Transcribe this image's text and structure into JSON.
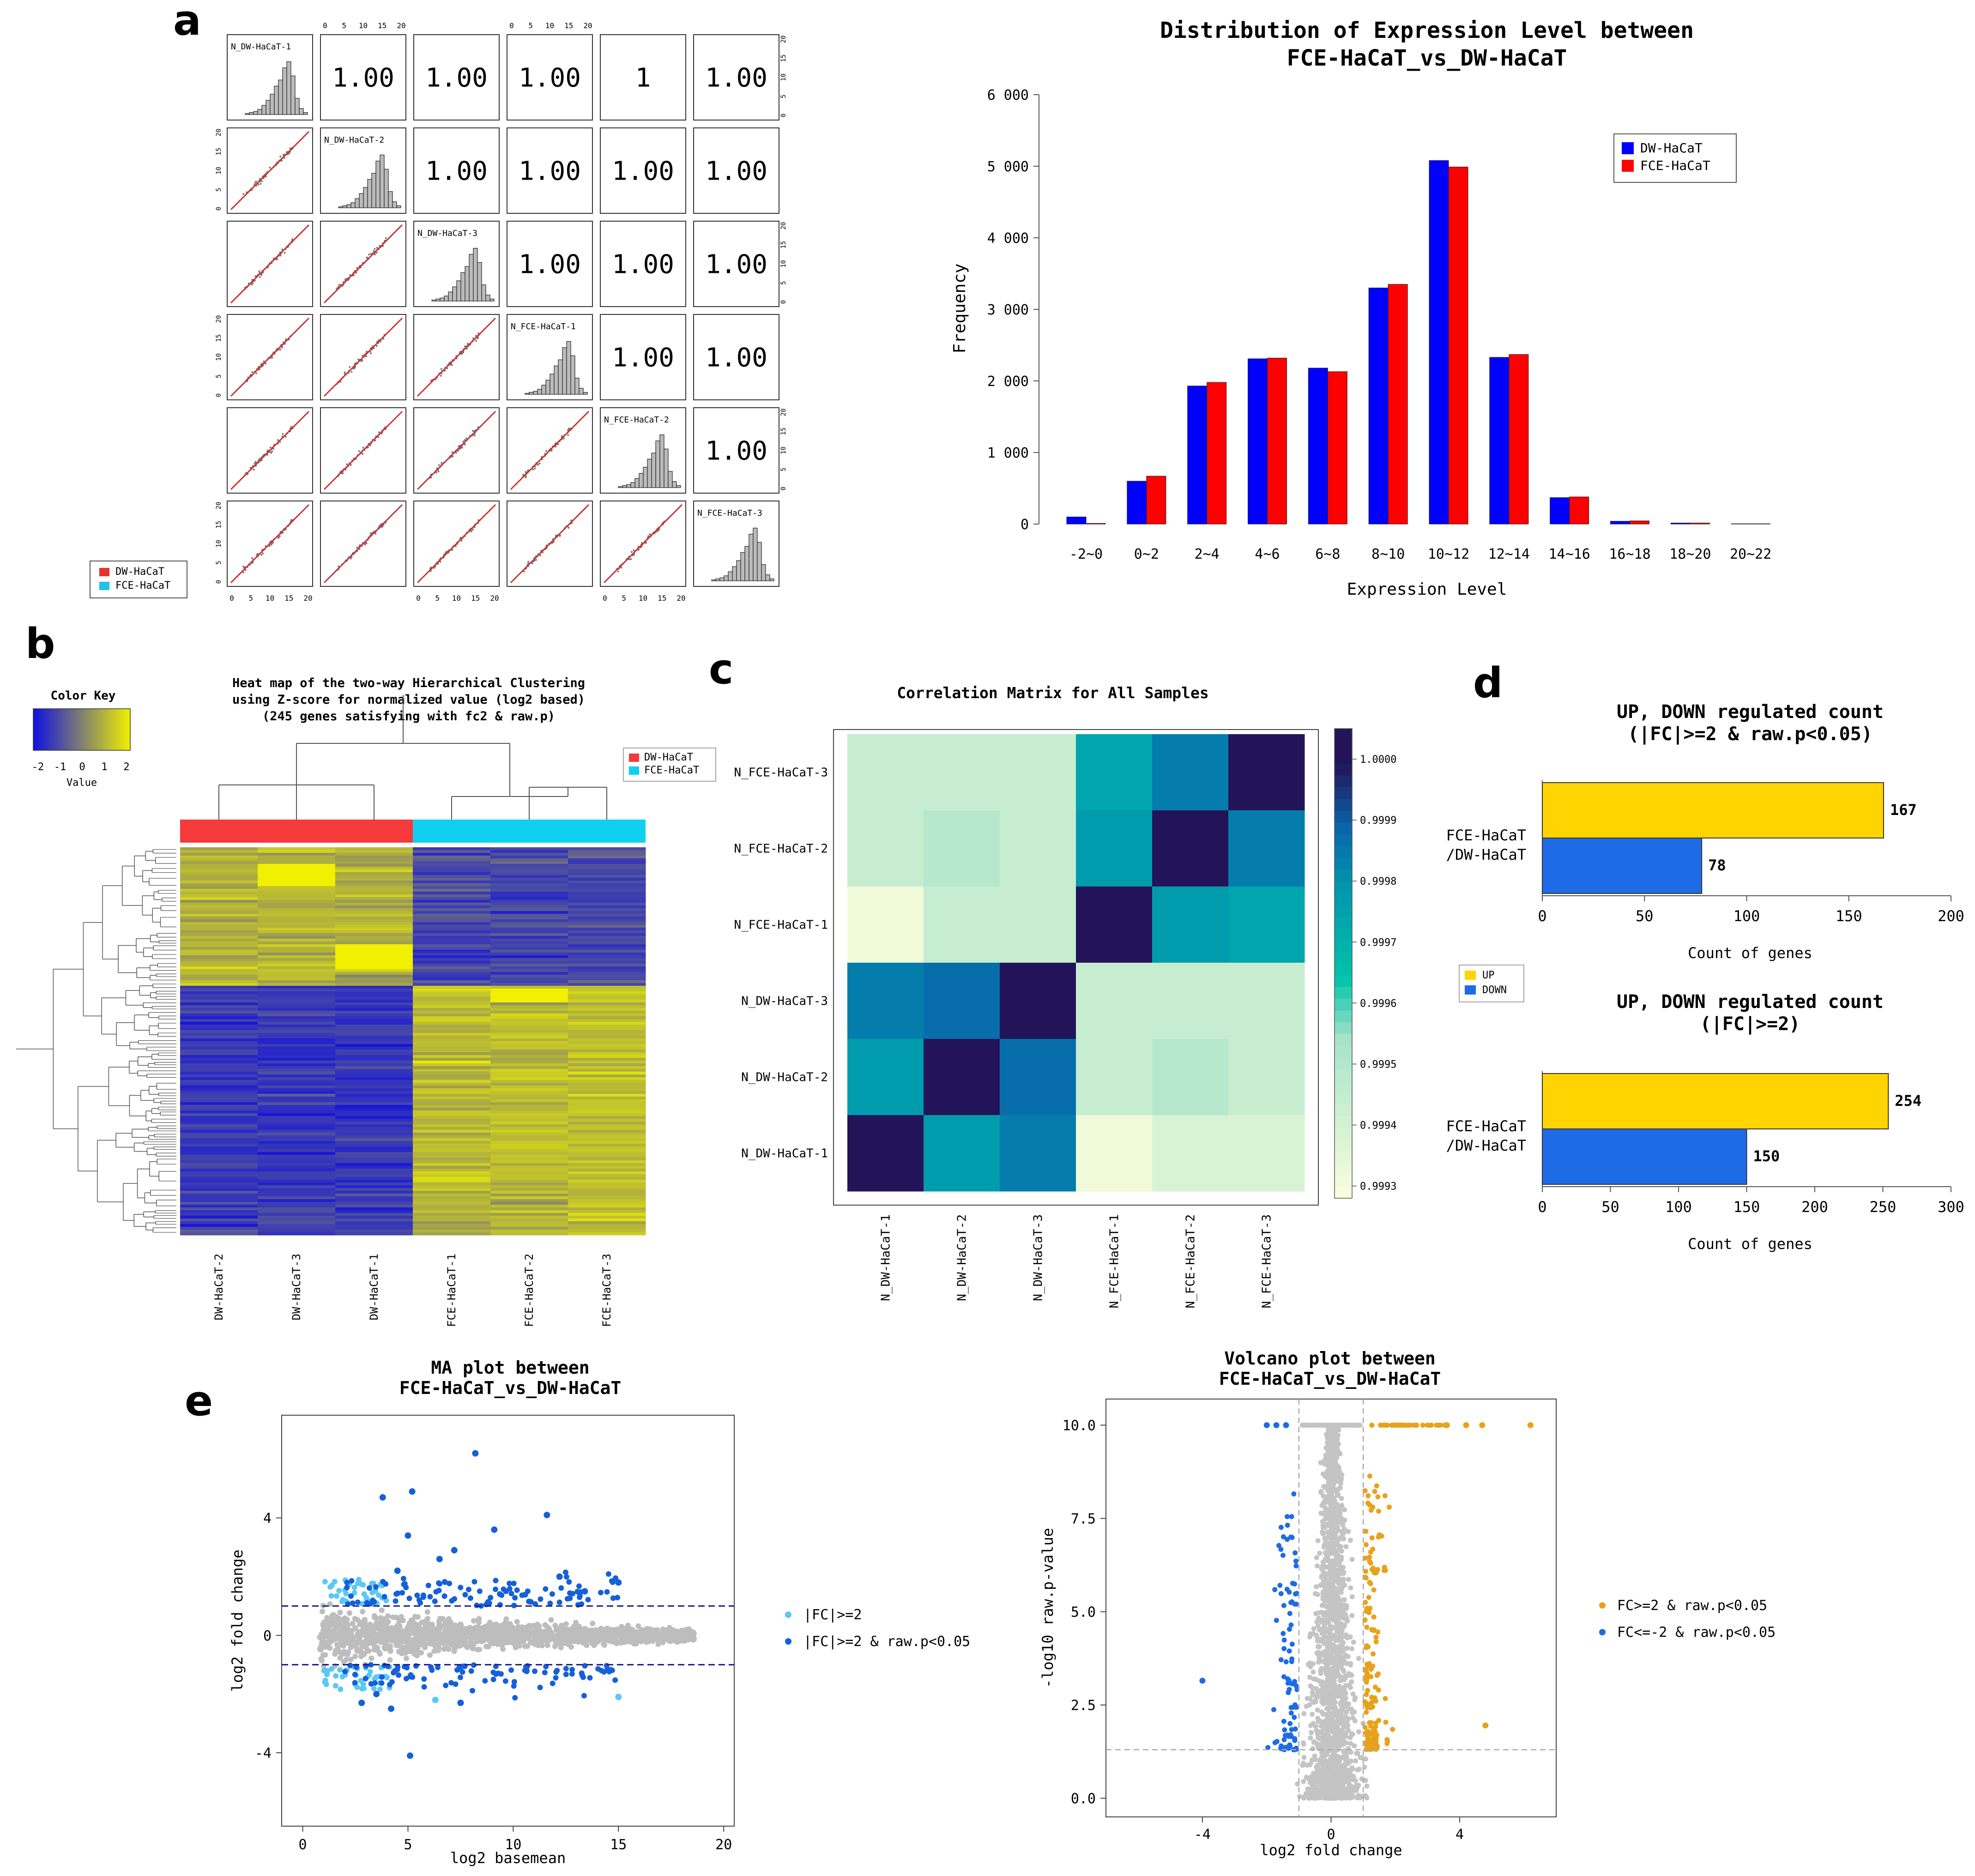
{
  "panel_labels": [
    "a",
    "b",
    "c",
    "d",
    "e"
  ],
  "pairs": {
    "samples": [
      "N_DW-HaCaT-1",
      "N_DW-HaCaT-2",
      "N_DW-HaCaT-3",
      "N_FCE-HaCaT-1",
      "N_FCE-HaCaT-2",
      "N_FCE-HaCaT-3"
    ],
    "corr_label": "1.00",
    "corr_label_partial": "1",
    "axis_ticks": [
      "0",
      "5",
      "10",
      "15",
      "20"
    ],
    "legend": [
      {
        "label": "DW-HaCaT",
        "color": "#e8312f"
      },
      {
        "label": "FCE-HaCaT",
        "color": "#1fc3e8"
      }
    ]
  },
  "chart_data": [
    {
      "type": "bar",
      "id": "distribution",
      "title": "Distribution of Expression Level between\nFCE-HaCaT_vs_DW-HaCaT",
      "xlabel": "Expression Level",
      "ylabel": "Frequency",
      "categories": [
        "-2~0",
        "0~2",
        "2~4",
        "4~6",
        "6~8",
        "8~10",
        "10~12",
        "12~14",
        "14~16",
        "16~18",
        "18~20",
        "20~22"
      ],
      "series": [
        {
          "name": "DW-HaCaT",
          "color": "#0000ff",
          "values": [
            100,
            600,
            1930,
            2310,
            2180,
            3300,
            5080,
            2330,
            370,
            40,
            15,
            5
          ]
        },
        {
          "name": "FCE-HaCaT",
          "color": "#ff0000",
          "values": [
            10,
            670,
            1980,
            2320,
            2130,
            3350,
            4990,
            2370,
            380,
            45,
            15,
            5
          ]
        }
      ],
      "yticks": [
        "0",
        "1 000",
        "2 000",
        "3 000",
        "4 000",
        "5 000",
        "6 000"
      ],
      "ylim": [
        0,
        6000
      ],
      "legend_position": "top-right"
    },
    {
      "type": "heatmap",
      "id": "clustering",
      "title": "Heat map of the two-way Hierarchical Clustering\nusing Z-score for normalized value (log2 based)\n(245 genes satisfying with fc2 & raw.p)",
      "columns": [
        "DW-HaCaT-2",
        "DW-HaCaT-3",
        "DW-HaCaT-1",
        "FCE-HaCaT-1",
        "FCE-HaCaT-2",
        "FCE-HaCaT-3"
      ],
      "color_key": {
        "title": "Color Key",
        "label": "Value",
        "ticks": [
          "-2",
          "-1",
          "0",
          "1",
          "2"
        ],
        "low": "#1010e0",
        "mid": "#808070",
        "high": "#f0f000"
      },
      "groups": [
        {
          "label": "DW-HaCaT",
          "color": "#f43a3a"
        },
        {
          "label": "FCE-HaCaT",
          "color": "#10d0f0"
        }
      ],
      "n_genes": 245
    },
    {
      "type": "heatmap",
      "id": "correlation",
      "title": "Correlation Matrix for All Samples",
      "rows_top_to_bottom": [
        "N_FCE-HaCaT-3",
        "N_FCE-HaCaT-2",
        "N_FCE-HaCaT-1",
        "N_DW-HaCaT-3",
        "N_DW-HaCaT-2",
        "N_DW-HaCaT-1"
      ],
      "columns": [
        "N_DW-HaCaT-1",
        "N_DW-HaCaT-2",
        "N_DW-HaCaT-3",
        "N_FCE-HaCaT-1",
        "N_FCE-HaCaT-2",
        "N_FCE-HaCaT-3"
      ],
      "values": [
        [
          0.99945,
          0.99945,
          0.99945,
          0.99975,
          0.99985,
          1.0
        ],
        [
          0.99945,
          0.9995,
          0.99945,
          0.99978,
          1.0,
          0.99985
        ],
        [
          0.99932,
          0.99945,
          0.99945,
          1.0,
          0.99978,
          0.99975
        ],
        [
          0.99985,
          0.99988,
          1.0,
          0.99945,
          0.99945,
          0.99945
        ],
        [
          0.99978,
          1.0,
          0.99988,
          0.99945,
          0.9995,
          0.99945
        ],
        [
          1.0,
          0.99978,
          0.99985,
          0.99932,
          0.9994,
          0.9994
        ]
      ],
      "scale_ticks": [
        "1.0000",
        "0.9999",
        "0.9998",
        "0.9997",
        "0.9996",
        "0.9995",
        "0.9994",
        "0.9993"
      ],
      "range": [
        0.99928,
        1.00005
      ]
    },
    {
      "type": "bar",
      "id": "updown_raw_p",
      "orientation": "horizontal",
      "title": "UP, DOWN regulated count\n(|FC|>=2 & raw.p<0.05)",
      "category": "FCE-HaCaT\n/DW-HaCaT",
      "series": [
        {
          "name": "UP",
          "color": "#ffd400",
          "value": 167
        },
        {
          "name": "DOWN",
          "color": "#1e6be6",
          "value": 78
        }
      ],
      "xticks": [
        "0",
        "50",
        "100",
        "150",
        "200"
      ],
      "xlim": [
        0,
        200
      ],
      "xlabel": "Count of genes"
    },
    {
      "type": "bar",
      "id": "updown_fc",
      "orientation": "horizontal",
      "title": "UP, DOWN regulated count\n(|FC|>=2)",
      "category": "FCE-HaCaT\n/DW-HaCaT",
      "series": [
        {
          "name": "UP",
          "color": "#ffd400",
          "value": 254
        },
        {
          "name": "DOWN",
          "color": "#1e6be6",
          "value": 150
        }
      ],
      "xticks": [
        "0",
        "50",
        "100",
        "150",
        "200",
        "250",
        "300"
      ],
      "xlim": [
        0,
        300
      ],
      "xlabel": "Count of genes",
      "legend": [
        {
          "label": "UP",
          "color": "#ffd400"
        },
        {
          "label": "DOWN",
          "color": "#1e6be6"
        }
      ]
    },
    {
      "type": "scatter",
      "id": "ma_plot",
      "title": "MA plot between\nFCE-HaCaT_vs_DW-HaCaT",
      "xlabel": "log2 basemean",
      "ylabel": "log2 fold change",
      "xticks": [
        "0",
        "5",
        "10",
        "15",
        "20"
      ],
      "yticks": [
        "-4",
        "0",
        "4"
      ],
      "xlim": [
        -1,
        20.5
      ],
      "ylim": [
        -6.5,
        7.5
      ],
      "thresholds": [
        1,
        -1
      ],
      "legend": [
        {
          "label": "|FC|>=2",
          "color": "#5bc8f5"
        },
        {
          "label": "|FC|>=2 & raw.p<0.05",
          "color": "#1560d8"
        }
      ],
      "highlight_points": [
        [
          8.2,
          6.2
        ],
        [
          5.2,
          4.9
        ],
        [
          3.8,
          4.7
        ],
        [
          11.6,
          4.1
        ],
        [
          5.0,
          3.4
        ],
        [
          9.1,
          3.6
        ],
        [
          7.2,
          2.9
        ],
        [
          6.5,
          2.6
        ],
        [
          15.0,
          1.8
        ],
        [
          13.4,
          1.5
        ],
        [
          12.2,
          2.0
        ],
        [
          4.5,
          2.2
        ],
        [
          5.1,
          -4.1
        ],
        [
          6.3,
          -2.2
        ],
        [
          7.5,
          -2.3
        ],
        [
          15.0,
          -2.1
        ],
        [
          4.2,
          -2.5
        ],
        [
          2.8,
          -2.3
        ],
        [
          3.5,
          -2.0
        ]
      ]
    },
    {
      "type": "scatter",
      "id": "volcano_plot",
      "title": "Volcano plot between\nFCE-HaCaT_vs_DW-HaCaT",
      "xlabel": "log2 fold change",
      "ylabel": "-log10 raw.p-value",
      "xticks": [
        "-4",
        "0",
        "4"
      ],
      "yticks": [
        "0.0",
        "2.5",
        "5.0",
        "7.5",
        "10.0"
      ],
      "xlim": [
        -7,
        7
      ],
      "ylim": [
        -0.5,
        10.7
      ],
      "thresholds_x": [
        -1,
        1
      ],
      "threshold_y": 1.3,
      "legend": [
        {
          "label": "FC>=2 & raw.p<0.05",
          "color": "#e8a21a"
        },
        {
          "label": "FC<=-2 & raw.p<0.05",
          "color": "#1e6be6"
        }
      ],
      "highlight_points": [
        [
          -4.0,
          3.15
        ],
        [
          4.8,
          1.95
        ],
        [
          6.2,
          10.0
        ],
        [
          4.7,
          10.0
        ],
        [
          4.2,
          10.0
        ],
        [
          3.6,
          10.0
        ],
        [
          -2.0,
          10.0
        ],
        [
          -1.7,
          10.0
        ],
        [
          -1.4,
          10.0
        ]
      ]
    }
  ]
}
